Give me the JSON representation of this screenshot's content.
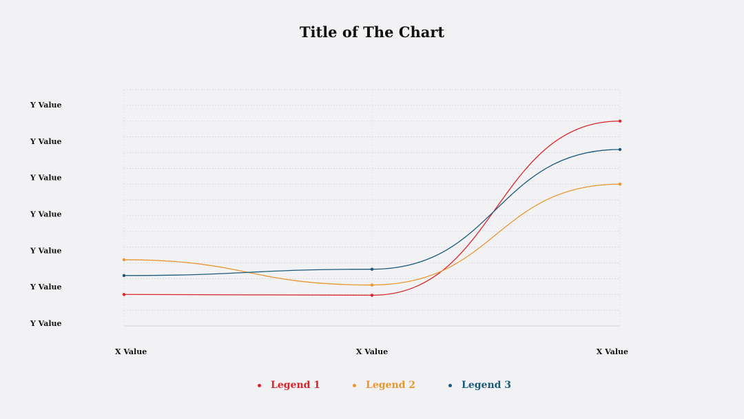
{
  "chart_data": {
    "type": "line",
    "title": "Title of The Chart",
    "categories": [
      "X Value",
      "X Value",
      "X Value"
    ],
    "y_tick_labels": [
      "Y Value",
      "Y Value",
      "Y Value",
      "Y Value",
      "Y Value",
      "Y Value",
      "Y Value"
    ],
    "ylim": [
      0,
      150
    ],
    "smooth": true,
    "grid": true,
    "legend_position": "bottom",
    "series": [
      {
        "name": "Legend 1",
        "color": "#d9262b",
        "values": [
          20,
          19.5,
          130
        ]
      },
      {
        "name": "Legend 2",
        "color": "#e8962e",
        "values": [
          42,
          26,
          90
        ]
      },
      {
        "name": "Legend 3",
        "color": "#1a5a7a",
        "values": [
          32,
          36,
          112
        ]
      }
    ]
  }
}
